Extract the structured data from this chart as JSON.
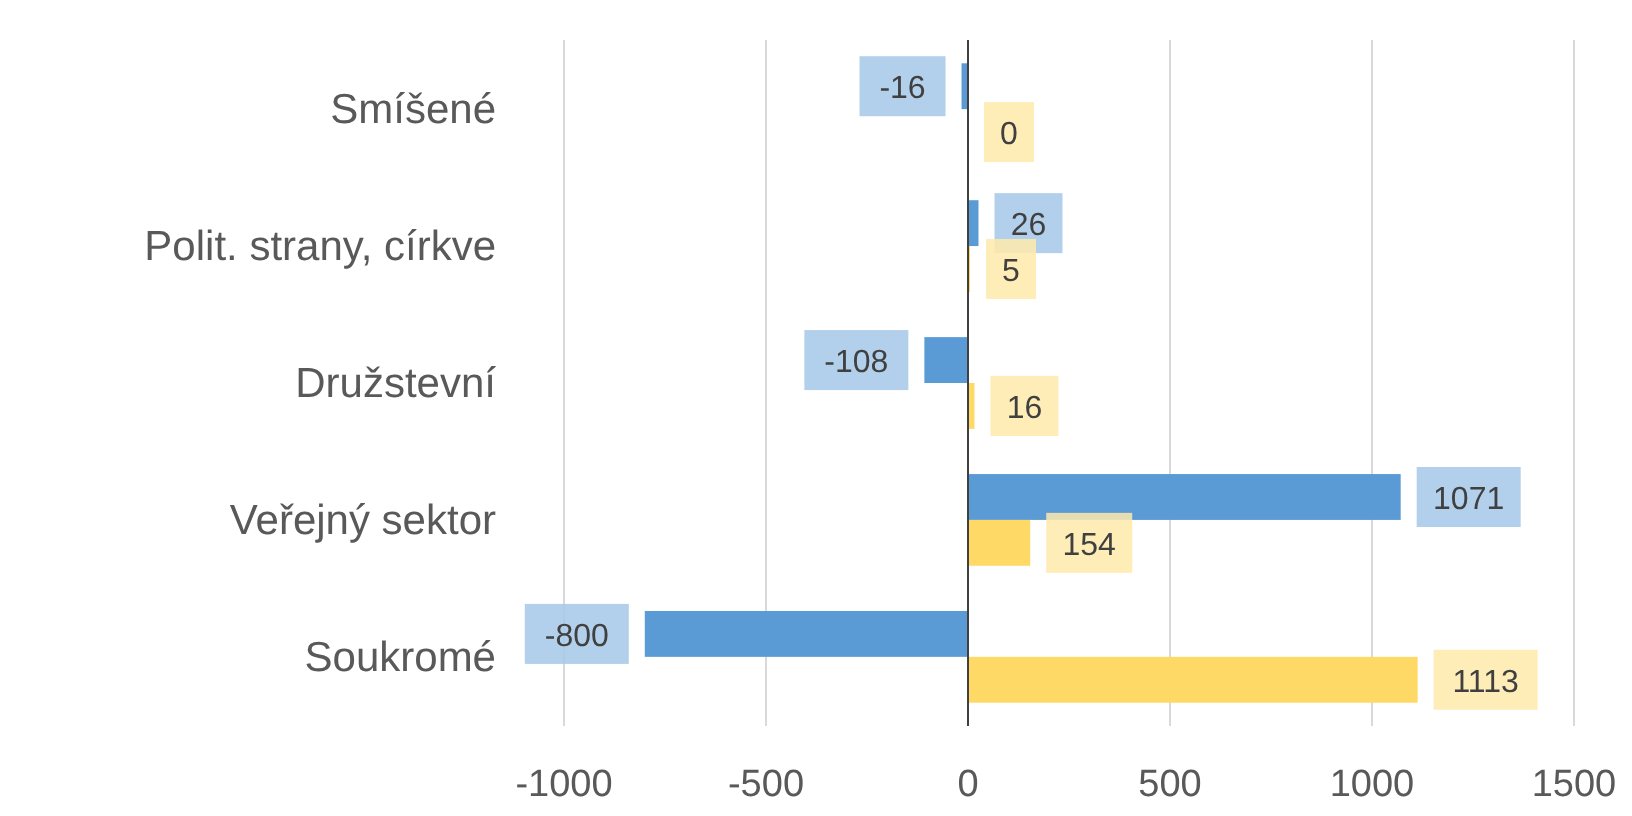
{
  "chart_data": {
    "type": "bar",
    "orientation": "horizontal",
    "categories": [
      "Smíšené",
      "Polit. strany, církve",
      "Družstevní",
      "Veřejný sektor",
      "Soukromé"
    ],
    "series": [
      {
        "color": "#5b9bd5",
        "values": [
          -16,
          26,
          -108,
          1071,
          -800
        ]
      },
      {
        "color": "#ffd966",
        "values": [
          0,
          5,
          16,
          154,
          1113
        ]
      }
    ],
    "xlim": [
      -1000,
      1500
    ],
    "xticks": [
      -1000,
      -500,
      0,
      500,
      1000,
      1500
    ],
    "grid": "x",
    "data_labels": true
  }
}
